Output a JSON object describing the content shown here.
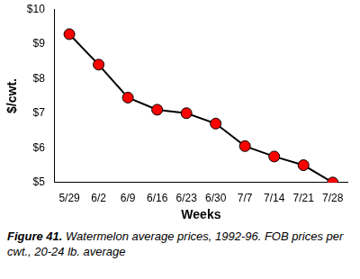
{
  "chart_data": {
    "type": "line",
    "title": "Figure 41.",
    "subtitle": "Watermelon average prices, 1992-96. FOB prices per cwt., 20-24 lb. average",
    "x_label": "Weeks",
    "y_label": "$/cwt.",
    "categories": [
      "5/29",
      "6/2",
      "6/9",
      "6/16",
      "6/23",
      "6/30",
      "7/7",
      "7/14",
      "7/21",
      "7/28"
    ],
    "series": [
      {
        "name": "Watermelon average prices",
        "color": "#ff0000",
        "line_color": "#000000",
        "values": [
          9.28,
          8.4,
          7.45,
          7.1,
          7.0,
          6.7,
          6.05,
          5.75,
          5.5,
          5.0
        ],
        "marker": "circle",
        "line_style": "solid"
      }
    ],
    "ylim": [
      5,
      10
    ],
    "yticks": [
      {
        "value": 5,
        "label": "$5"
      },
      {
        "value": 6,
        "label": "$6"
      },
      {
        "value": 7,
        "label": "$7"
      },
      {
        "value": 8,
        "label": "$8"
      },
      {
        "value": 9,
        "label": "$9"
      },
      {
        "value": 10,
        "label": "$10"
      }
    ],
    "grid": false
  }
}
